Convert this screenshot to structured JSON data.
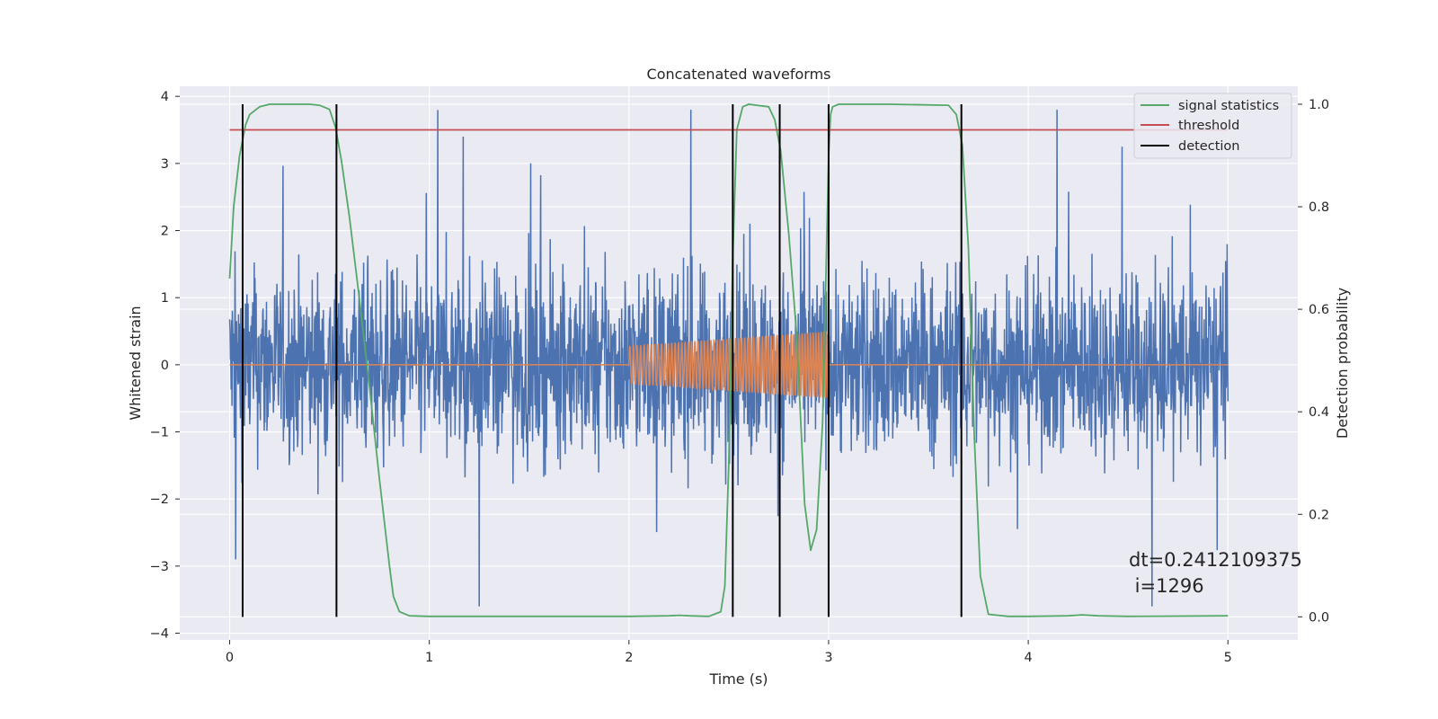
{
  "chart_data": {
    "type": "line",
    "title": "Concatenated waveforms",
    "xlabel": "Time (s)",
    "ylabel": "Whitened strain",
    "y2label": "Detection probability",
    "xlim": [
      -0.25,
      5.35
    ],
    "ylim": [
      -4.1,
      4.15
    ],
    "y2lim": [
      -0.045,
      1.035
    ],
    "xticks": [
      0,
      1,
      2,
      3,
      4,
      5
    ],
    "yticks": [
      -4,
      -3,
      -2,
      -1,
      0,
      1,
      2,
      3,
      4
    ],
    "y2ticks": [
      0.0,
      0.2,
      0.4,
      0.6,
      0.8,
      1.0
    ],
    "grid": true,
    "legend_position": "top-right",
    "series": [
      {
        "name": "",
        "axis": "left",
        "color": "#4c72b0",
        "kind": "noise",
        "x_range": [
          0,
          5
        ],
        "approx_envelope": [
          -3.6,
          3.8
        ],
        "notable_peaks": [
          [
            0.03,
            -2.9
          ],
          [
            1.17,
            3.4
          ],
          [
            1.25,
            -3.6
          ],
          [
            2.31,
            3.8
          ],
          [
            4.62,
            -3.6
          ],
          [
            4.47,
            3.25
          ]
        ]
      },
      {
        "name": "",
        "axis": "left",
        "color": "#dd8452",
        "kind": "chirp",
        "x": [
          0.0,
          2.0,
          2.0,
          3.0,
          3.0,
          5.0
        ],
        "amplitude": [
          0.0,
          0.0,
          0.28,
          0.5,
          0.0,
          0.0
        ]
      },
      {
        "name": "signal statistics",
        "axis": "right",
        "color": "#55a868",
        "x": [
          0.0,
          0.02,
          0.05,
          0.08,
          0.1,
          0.15,
          0.2,
          0.3,
          0.4,
          0.45,
          0.5,
          0.53,
          0.56,
          0.6,
          0.65,
          0.7,
          0.75,
          0.8,
          0.82,
          0.85,
          0.9,
          1.0,
          1.5,
          2.0,
          2.2,
          2.25,
          2.3,
          2.4,
          2.46,
          2.48,
          2.5,
          2.52,
          2.54,
          2.57,
          2.6,
          2.7,
          2.73,
          2.76,
          2.8,
          2.84,
          2.88,
          2.91,
          2.94,
          2.97,
          3.0,
          3.01,
          3.02,
          3.05,
          3.1,
          3.3,
          3.6,
          3.64,
          3.67,
          3.7,
          3.73,
          3.76,
          3.8,
          3.9,
          4.0,
          4.2,
          4.27,
          4.35,
          4.5,
          5.0
        ],
        "values": [
          0.66,
          0.8,
          0.9,
          0.96,
          0.98,
          0.995,
          1.0,
          1.0,
          1.0,
          0.998,
          0.99,
          0.955,
          0.89,
          0.78,
          0.62,
          0.45,
          0.27,
          0.1,
          0.04,
          0.01,
          0.002,
          0.001,
          0.001,
          0.001,
          0.002,
          0.003,
          0.002,
          0.001,
          0.01,
          0.06,
          0.3,
          0.7,
          0.95,
          0.995,
          1.0,
          0.995,
          0.97,
          0.91,
          0.75,
          0.55,
          0.22,
          0.13,
          0.17,
          0.38,
          0.9,
          0.98,
          0.995,
          1.0,
          1.0,
          1.0,
          0.998,
          0.98,
          0.92,
          0.72,
          0.35,
          0.08,
          0.005,
          0.001,
          0.001,
          0.002,
          0.004,
          0.002,
          0.001,
          0.002
        ]
      },
      {
        "name": "threshold",
        "axis": "right",
        "color": "#c44e52",
        "x": [
          0,
          5
        ],
        "values": [
          0.95,
          0.95
        ]
      },
      {
        "name": "detection",
        "axis": "right",
        "color": "#000000",
        "kind": "vlines",
        "x": [
          0.065,
          0.535,
          2.52,
          2.755,
          3.0,
          3.665
        ],
        "ymin": 0,
        "ymax": 1
      }
    ],
    "annotation": {
      "line1": "dt=0.2412109375",
      "line2": " i=1296"
    }
  }
}
